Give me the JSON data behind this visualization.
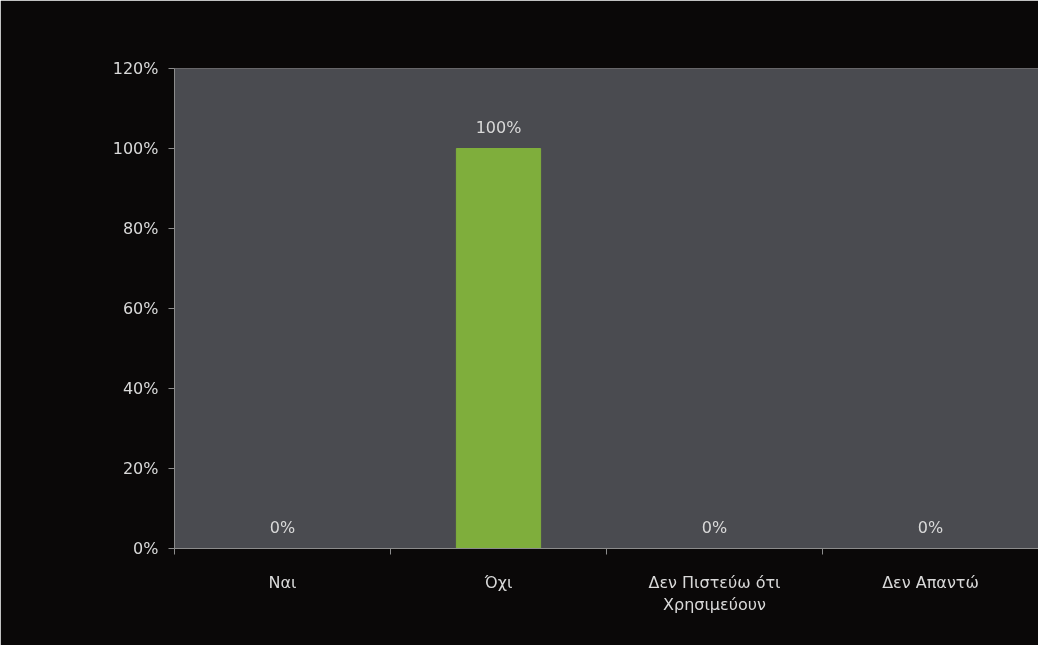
{
  "chart_data": {
    "type": "bar",
    "categories": [
      "Ναι",
      "Όχι",
      "Δεν Πιστεύω ότι Χρησιμεύουν",
      "Δεν Απαντώ"
    ],
    "values": [
      0,
      100,
      0,
      0
    ],
    "value_labels": [
      "0%",
      "100%",
      "0%",
      "0%"
    ],
    "color": "#7fae3c",
    "ylim": [
      0,
      120
    ],
    "yticks": [
      {
        "value": 0,
        "label": "0%"
      },
      {
        "value": 20,
        "label": "20%"
      },
      {
        "value": 40,
        "label": "40%"
      },
      {
        "value": 60,
        "label": "60%"
      },
      {
        "value": 80,
        "label": "80%"
      },
      {
        "value": 100,
        "label": "100%"
      },
      {
        "value": 120,
        "label": "120%"
      }
    ],
    "grid": false
  }
}
